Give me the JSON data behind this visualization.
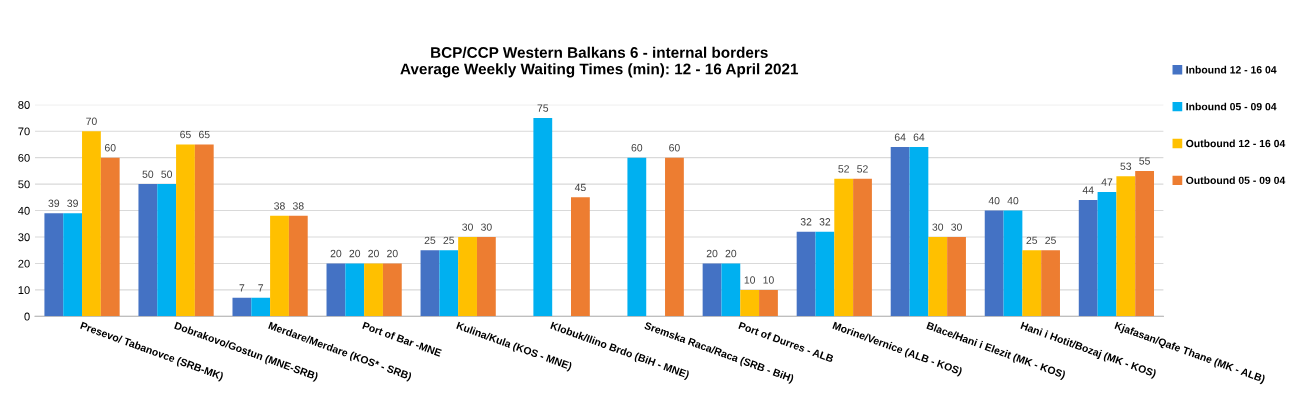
{
  "chart_data": {
    "type": "bar",
    "title": "BCP/CCP Western Balkans 6 - internal borders\nAverage Weekly Waiting Times (min): 12 - 16 April 2021",
    "categories": [
      "Presevo/ Tabanovce (SRB-MK)",
      "Dobrakovo/Gostun (MNE-SRB)",
      "Merdare/Merdare (KOS* - SRB)",
      "Port of Bar -MNE",
      "Kulina/Kula (KOS - MNE)",
      "Klobuk/Ilino Brdo (BiH - MNE)",
      "Sremska Raca/Raca (SRB - BiH)",
      "Port of Durres - ALB",
      "Morine/Vernice (ALB - KOS)",
      "Blace/Hani i Elezit (MK - KOS)",
      "Hani i Hotit/Bozaj (MK - KOS)",
      "Kjafasan/Qafe Thane (MK - ALB)"
    ],
    "series": [
      {
        "name": "Inbound 12 - 16 04",
        "color": "#4472c4",
        "values": [
          39,
          50,
          7,
          20,
          25,
          null,
          null,
          20,
          32,
          64,
          40,
          44
        ]
      },
      {
        "name": "Inbound 05 - 09 04",
        "color": "#00b0f0",
        "values": [
          39,
          50,
          7,
          20,
          25,
          75,
          60,
          20,
          32,
          64,
          40,
          47
        ]
      },
      {
        "name": "Outbound 12 - 16 04",
        "color": "#ffc000",
        "values": [
          70,
          65,
          38,
          20,
          30,
          null,
          null,
          10,
          52,
          30,
          25,
          53
        ]
      },
      {
        "name": "Outbound 05 - 09 04",
        "color": "#ed7d31",
        "values": [
          60,
          65,
          38,
          20,
          30,
          45,
          60,
          10,
          52,
          30,
          25,
          55
        ]
      }
    ],
    "ylim": [
      0,
      80
    ],
    "yticks": [
      0,
      10,
      20,
      30,
      40,
      50,
      60,
      70,
      80
    ],
    "grid": "y",
    "legend": "right",
    "data_labels": true
  }
}
